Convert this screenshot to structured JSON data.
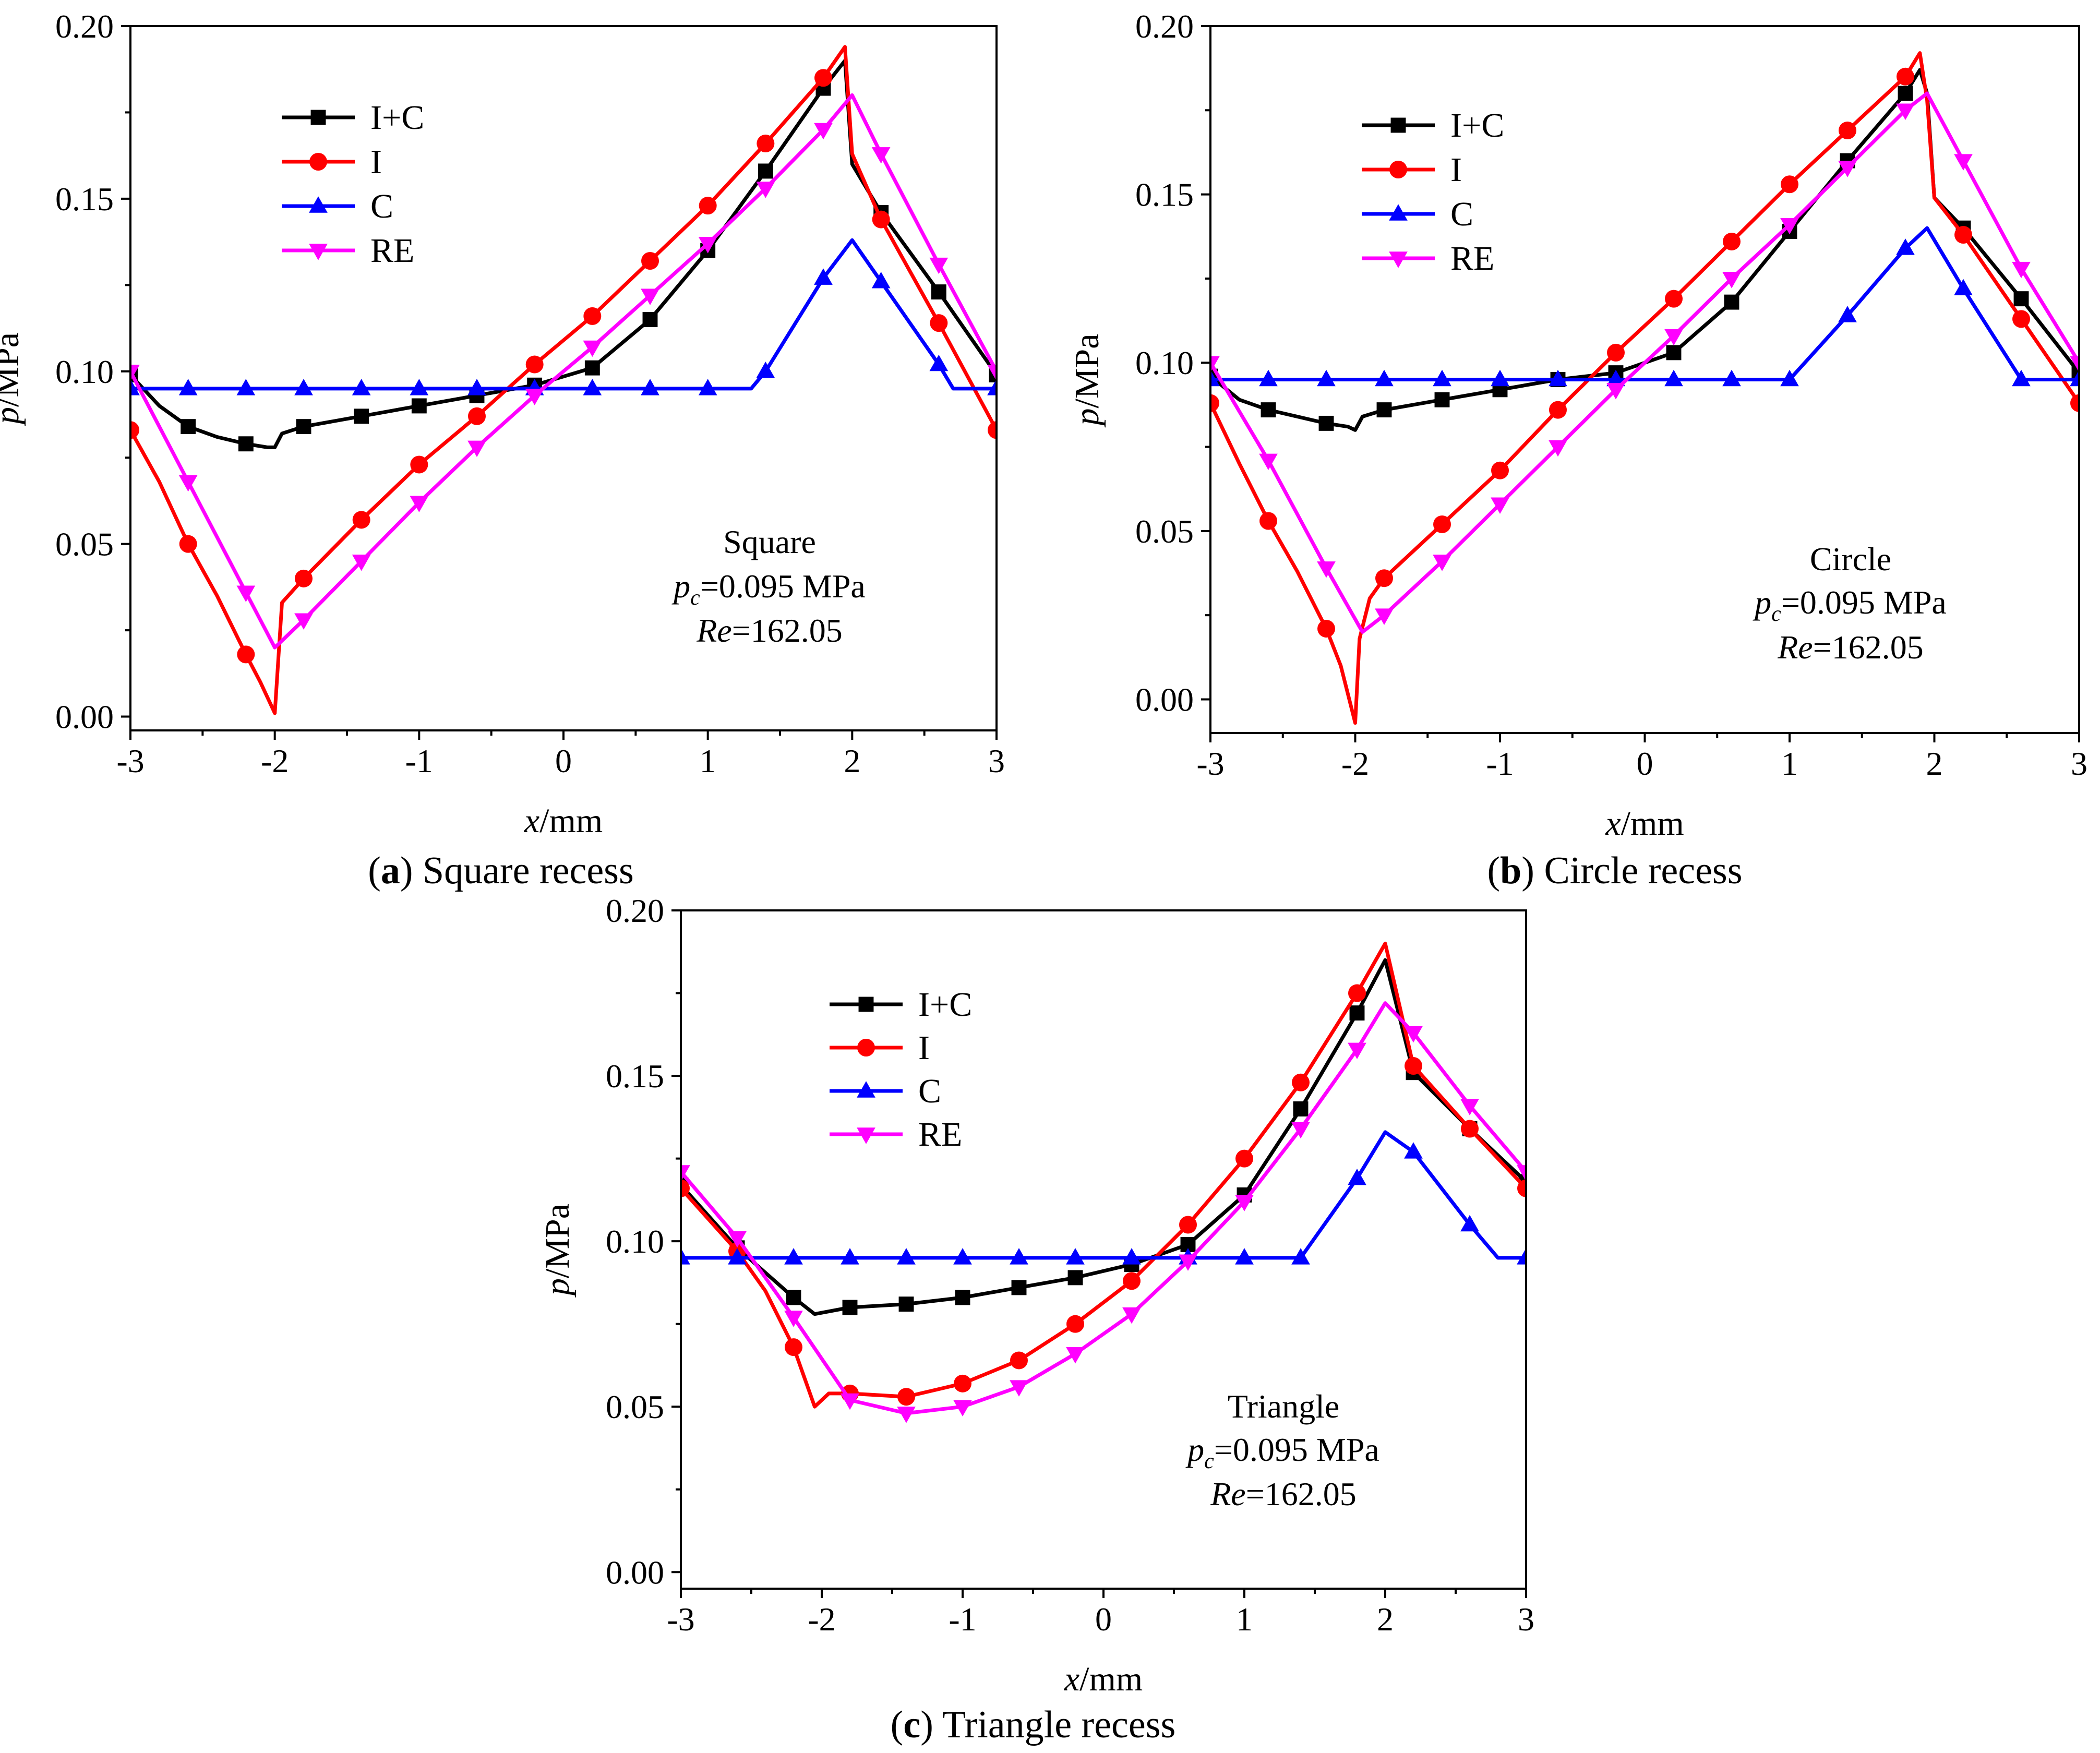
{
  "colors": {
    "I+C": "#000000",
    "I": "#ff0000",
    "C": "#0000ff",
    "RE": "#ff00ff"
  },
  "markers": {
    "I+C": "square",
    "I": "circle",
    "C": "triangle-up",
    "RE": "triangle-down"
  },
  "chart_data": [
    {
      "type": "line",
      "caption_letter": "a",
      "caption_text": "Square recess",
      "xlabel": "x/mm",
      "ylabel": "p/MPa",
      "xlim": [
        -3,
        3
      ],
      "ylim": [
        -0.004,
        0.2
      ],
      "xticks": [
        -3,
        -2,
        -1,
        0,
        1,
        2,
        3
      ],
      "xtick_labels": [
        "-3",
        "-2",
        "-1",
        "0",
        "1",
        "2",
        "3"
      ],
      "yticks": [
        0,
        0.05,
        0.1,
        0.15,
        0.2
      ],
      "ytick_labels": [
        "0.00",
        "0.05",
        "0.10",
        "0.15",
        "0.20"
      ],
      "legend": {
        "position": "top-left",
        "entries": [
          "I+C",
          "I",
          "C",
          "RE"
        ]
      },
      "annotation": {
        "title": "Square",
        "pc": "=0.095 MPa",
        "re": "=162.05"
      },
      "series": [
        {
          "name": "I+C",
          "x": [
            -3,
            -2.8,
            -2.6,
            -2.4,
            -2.2,
            -2.05,
            -2.0,
            -1.95,
            -1.8,
            -1.4,
            -1.0,
            -0.6,
            -0.2,
            0.2,
            0.6,
            1.0,
            1.4,
            1.8,
            1.95,
            2.0,
            2.2,
            2.6,
            3.0
          ],
          "y": [
            0.099,
            0.09,
            0.084,
            0.081,
            0.079,
            0.078,
            0.078,
            0.082,
            0.084,
            0.087,
            0.09,
            0.093,
            0.096,
            0.101,
            0.115,
            0.135,
            0.158,
            0.182,
            0.19,
            0.16,
            0.146,
            0.123,
            0.099
          ]
        },
        {
          "name": "I",
          "x": [
            -3,
            -2.8,
            -2.6,
            -2.4,
            -2.2,
            -2.1,
            -2.0,
            -1.95,
            -1.8,
            -1.4,
            -1.0,
            -0.6,
            -0.2,
            0.2,
            0.6,
            1.0,
            1.4,
            1.8,
            1.95,
            2.0,
            2.2,
            2.6,
            3.0
          ],
          "y": [
            0.083,
            0.068,
            0.05,
            0.035,
            0.018,
            0.01,
            0.001,
            0.033,
            0.04,
            0.057,
            0.073,
            0.087,
            0.102,
            0.116,
            0.132,
            0.148,
            0.166,
            0.185,
            0.194,
            0.163,
            0.144,
            0.114,
            0.083
          ]
        },
        {
          "name": "C",
          "x": [
            -3,
            -2.6,
            -2.2,
            -1.8,
            -1.4,
            -1.0,
            -0.6,
            -0.2,
            0.2,
            0.6,
            1.0,
            1.3,
            1.4,
            1.8,
            2.0,
            2.2,
            2.6,
            2.7,
            3.0
          ],
          "y": [
            0.095,
            0.095,
            0.095,
            0.095,
            0.095,
            0.095,
            0.095,
            0.095,
            0.095,
            0.095,
            0.095,
            0.095,
            0.1,
            0.127,
            0.138,
            0.126,
            0.102,
            0.095,
            0.095
          ]
        },
        {
          "name": "RE",
          "x": [
            -3,
            -2.6,
            -2.2,
            -2.0,
            -1.8,
            -1.4,
            -1.0,
            -0.6,
            -0.2,
            0.2,
            0.6,
            1.0,
            1.4,
            1.8,
            2.0,
            2.2,
            2.6,
            3.0
          ],
          "y": [
            0.1,
            0.068,
            0.036,
            0.02,
            0.028,
            0.045,
            0.062,
            0.078,
            0.093,
            0.107,
            0.122,
            0.137,
            0.153,
            0.17,
            0.18,
            0.163,
            0.131,
            0.1
          ]
        }
      ]
    },
    {
      "type": "line",
      "caption_letter": "b",
      "caption_text": "Circle recess",
      "xlabel": "x/mm",
      "ylabel": "p/MPa",
      "xlim": [
        -3,
        3
      ],
      "ylim": [
        -0.01,
        0.2
      ],
      "xticks": [
        -3,
        -2,
        -1,
        0,
        1,
        2,
        3
      ],
      "xtick_labels": [
        "-3",
        "-2",
        "-1",
        "0",
        "1",
        "2",
        "3"
      ],
      "yticks": [
        0,
        0.05,
        0.1,
        0.15,
        0.2
      ],
      "ytick_labels": [
        "0.00",
        "0.05",
        "0.10",
        "0.15",
        "0.20"
      ],
      "legend": {
        "position": "top-left",
        "entries": [
          "I+C",
          "I",
          "C",
          "RE"
        ]
      },
      "annotation": {
        "title": "Circle",
        "pc": "=0.095 MPa",
        "re": "=162.05"
      },
      "series": [
        {
          "name": "I+C",
          "x": [
            -3,
            -2.8,
            -2.6,
            -2.4,
            -2.2,
            -2.05,
            -2.0,
            -1.95,
            -1.8,
            -1.4,
            -1.0,
            -0.6,
            -0.2,
            0.2,
            0.6,
            1.0,
            1.4,
            1.8,
            1.9,
            1.95,
            2.0,
            2.2,
            2.6,
            3.0
          ],
          "y": [
            0.096,
            0.089,
            0.086,
            0.084,
            0.082,
            0.081,
            0.08,
            0.084,
            0.086,
            0.089,
            0.092,
            0.095,
            0.097,
            0.103,
            0.118,
            0.139,
            0.16,
            0.18,
            0.187,
            0.18,
            0.149,
            0.14,
            0.119,
            0.097
          ]
        },
        {
          "name": "I",
          "x": [
            -3,
            -2.8,
            -2.6,
            -2.4,
            -2.2,
            -2.1,
            -2.0,
            -1.97,
            -1.9,
            -1.8,
            -1.4,
            -1.0,
            -0.6,
            -0.2,
            0.2,
            0.6,
            1.0,
            1.4,
            1.8,
            1.9,
            1.95,
            2.0,
            2.2,
            2.6,
            3.0
          ],
          "y": [
            0.088,
            0.07,
            0.053,
            0.038,
            0.021,
            0.01,
            -0.007,
            0.018,
            0.03,
            0.036,
            0.052,
            0.068,
            0.086,
            0.103,
            0.119,
            0.136,
            0.153,
            0.169,
            0.185,
            0.192,
            0.178,
            0.149,
            0.138,
            0.113,
            0.088
          ]
        },
        {
          "name": "C",
          "x": [
            -3,
            -2.6,
            -2.2,
            -1.8,
            -1.4,
            -1.0,
            -0.6,
            -0.2,
            0.2,
            0.6,
            1.0,
            1.4,
            1.8,
            1.95,
            2.2,
            2.6,
            3.0
          ],
          "y": [
            0.095,
            0.095,
            0.095,
            0.095,
            0.095,
            0.095,
            0.095,
            0.095,
            0.095,
            0.095,
            0.095,
            0.114,
            0.134,
            0.14,
            0.122,
            0.095,
            0.095
          ]
        },
        {
          "name": "RE",
          "x": [
            -3,
            -2.6,
            -2.2,
            -1.95,
            -1.8,
            -1.4,
            -1.0,
            -0.6,
            -0.2,
            0.2,
            0.6,
            1.0,
            1.4,
            1.8,
            1.95,
            2.2,
            2.6,
            3.0
          ],
          "y": [
            0.1,
            0.071,
            0.039,
            0.02,
            0.025,
            0.041,
            0.058,
            0.075,
            0.092,
            0.108,
            0.125,
            0.141,
            0.158,
            0.175,
            0.18,
            0.16,
            0.128,
            0.1
          ]
        }
      ]
    },
    {
      "type": "line",
      "caption_letter": "c",
      "caption_text": "Triangle recess",
      "xlabel": "x/mm",
      "ylabel": "p/MPa",
      "xlim": [
        -3,
        3
      ],
      "ylim": [
        -0.005,
        0.2
      ],
      "xticks": [
        -3,
        -2,
        -1,
        0,
        1,
        2,
        3
      ],
      "xtick_labels": [
        "-3",
        "-2",
        "-1",
        "0",
        "1",
        "2",
        "3"
      ],
      "yticks": [
        0,
        0.05,
        0.1,
        0.15,
        0.2
      ],
      "ytick_labels": [
        "0.00",
        "0.05",
        "0.10",
        "0.15",
        "0.20"
      ],
      "legend": {
        "position": "top-left",
        "entries": [
          "I+C",
          "I",
          "C",
          "RE"
        ]
      },
      "annotation": {
        "title": "Triangle",
        "pc": "=0.095 MPa",
        "re": "=162.05"
      },
      "series": [
        {
          "name": "I+C",
          "x": [
            -3,
            -2.6,
            -2.2,
            -2.05,
            -1.8,
            -1.4,
            -1.0,
            -0.6,
            -0.2,
            0.2,
            0.6,
            1.0,
            1.4,
            1.8,
            2.0,
            2.2,
            2.6,
            3.0
          ],
          "y": [
            0.117,
            0.098,
            0.083,
            0.078,
            0.08,
            0.081,
            0.083,
            0.086,
            0.089,
            0.093,
            0.099,
            0.114,
            0.14,
            0.169,
            0.185,
            0.151,
            0.134,
            0.118
          ]
        },
        {
          "name": "I",
          "x": [
            -3,
            -2.6,
            -2.4,
            -2.2,
            -2.05,
            -1.95,
            -1.8,
            -1.4,
            -1.0,
            -0.6,
            -0.2,
            0.2,
            0.6,
            1.0,
            1.4,
            1.8,
            2.0,
            2.2,
            2.6,
            3.0
          ],
          "y": [
            0.116,
            0.097,
            0.085,
            0.068,
            0.05,
            0.054,
            0.054,
            0.053,
            0.057,
            0.064,
            0.075,
            0.088,
            0.105,
            0.125,
            0.148,
            0.175,
            0.19,
            0.153,
            0.134,
            0.116
          ]
        },
        {
          "name": "C",
          "x": [
            -3,
            -2.6,
            -2.2,
            -1.8,
            -1.4,
            -1.0,
            -0.6,
            -0.2,
            0.2,
            0.6,
            1.0,
            1.4,
            1.8,
            2.0,
            2.2,
            2.6,
            2.8,
            3.0
          ],
          "y": [
            0.095,
            0.095,
            0.095,
            0.095,
            0.095,
            0.095,
            0.095,
            0.095,
            0.095,
            0.095,
            0.095,
            0.095,
            0.119,
            0.133,
            0.127,
            0.105,
            0.095,
            0.095
          ]
        },
        {
          "name": "RE",
          "x": [
            -3,
            -2.6,
            -2.2,
            -1.8,
            -1.4,
            -1.0,
            -0.6,
            -0.2,
            0.2,
            0.6,
            1.0,
            1.4,
            1.8,
            2.0,
            2.2,
            2.6,
            3.0
          ],
          "y": [
            0.121,
            0.101,
            0.077,
            0.052,
            0.048,
            0.05,
            0.056,
            0.066,
            0.078,
            0.094,
            0.112,
            0.134,
            0.158,
            0.172,
            0.163,
            0.141,
            0.121
          ]
        }
      ]
    }
  ]
}
